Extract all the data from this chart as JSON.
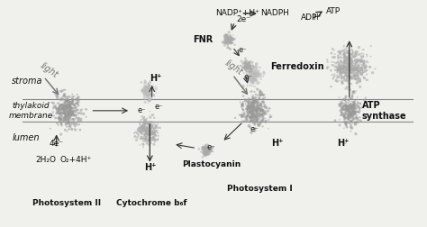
{
  "bg_color": "#f0f0ec",
  "fig_width": 4.74,
  "fig_height": 2.52,
  "dpi": 100,
  "labels": {
    "stroma": "stroma",
    "thylakoid": "thylakoid\nmembrane",
    "lumen": "lumen",
    "photosystem_ii": "Photosystem II",
    "cytochrome": "Cytochrome b₆f",
    "photosystem_i": "Photosystem I",
    "atp_synthase": "ATP\nsynthase",
    "fnr": "FNR",
    "ferredoxin": "Ferredoxin",
    "plastocyanin": "Plastocyanin",
    "nadp_in": "NADP⁺+H⁺",
    "nadph": "NADPH",
    "adp": "ADP",
    "atp": "ATP",
    "two_e": "2e⁻",
    "e_minus": "e⁻",
    "four_e": "4e⁻",
    "water": "2H₂O",
    "oxygen": "O₂+4H⁺",
    "h_plus": "H⁺",
    "light": "light"
  },
  "membrane_color": "#888888",
  "arrow_color": "#333333",
  "text_color": "#111111",
  "gray_text": "#777777"
}
